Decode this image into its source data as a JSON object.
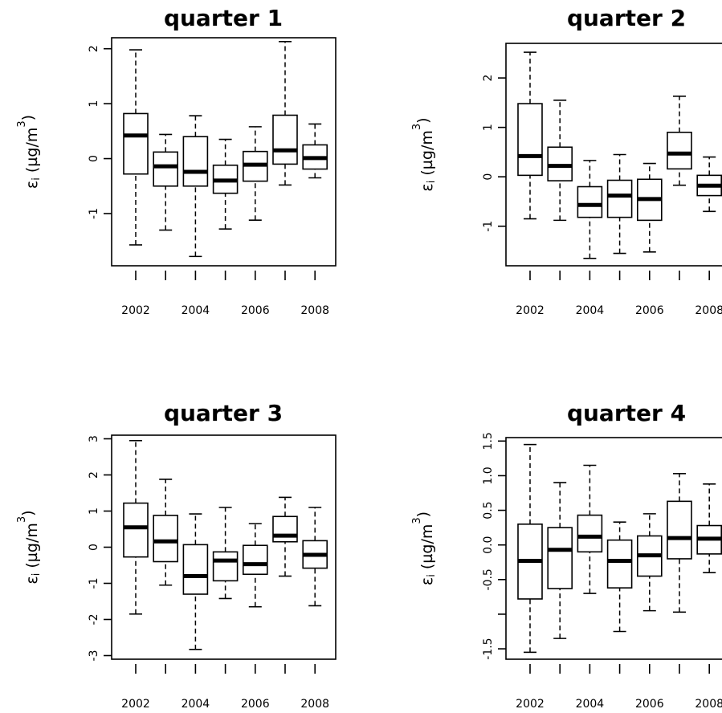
{
  "chart_data": [
    {
      "type": "boxplot",
      "title": "quarter 1",
      "ylabel": {
        "symbol": "ε",
        "sub": "i",
        "unit_pre": " (µg/m",
        "unit_sup": "3",
        "unit_post": ")"
      },
      "categories": [
        2002,
        2003,
        2004,
        2005,
        2006,
        2007,
        2008
      ],
      "x_tick_labels": [
        "2002",
        "2004",
        "2006",
        "2008"
      ],
      "y_ticks": [
        -1,
        0,
        1,
        2
      ],
      "y_tick_labels": [
        "-1",
        "0",
        "1",
        "2"
      ],
      "ylim": [
        -1.95,
        2.2
      ],
      "boxes": [
        {
          "year": 2002,
          "min": -1.57,
          "q1": -0.28,
          "median": 0.42,
          "q3": 0.82,
          "max": 1.98
        },
        {
          "year": 2003,
          "min": -1.3,
          "q1": -0.5,
          "median": -0.14,
          "q3": 0.12,
          "max": 0.44
        },
        {
          "year": 2004,
          "min": -1.78,
          "q1": -0.5,
          "median": -0.24,
          "q3": 0.4,
          "max": 0.78
        },
        {
          "year": 2005,
          "min": -1.28,
          "q1": -0.63,
          "median": -0.4,
          "q3": -0.12,
          "max": 0.35
        },
        {
          "year": 2006,
          "min": -1.12,
          "q1": -0.41,
          "median": -0.11,
          "q3": 0.13,
          "max": 0.58
        },
        {
          "year": 2007,
          "min": -0.48,
          "q1": -0.1,
          "median": 0.15,
          "q3": 0.79,
          "max": 2.13
        },
        {
          "year": 2008,
          "min": -0.35,
          "q1": -0.19,
          "median": 0.01,
          "q3": 0.25,
          "max": 0.63
        }
      ]
    },
    {
      "type": "boxplot",
      "title": "quarter 2",
      "ylabel": {
        "symbol": "ε",
        "sub": "i",
        "unit_pre": " (µg/m",
        "unit_sup": "3",
        "unit_post": ")"
      },
      "categories": [
        2002,
        2003,
        2004,
        2005,
        2006,
        2007,
        2008
      ],
      "x_tick_labels": [
        "2002",
        "2004",
        "2006",
        "2008"
      ],
      "y_ticks": [
        -1,
        0,
        1,
        2
      ],
      "y_tick_labels": [
        "-1",
        "0",
        "1",
        "2"
      ],
      "ylim": [
        -1.8,
        2.7
      ],
      "boxes": [
        {
          "year": 2002,
          "min": -0.85,
          "q1": 0.03,
          "median": 0.42,
          "q3": 1.48,
          "max": 2.52
        },
        {
          "year": 2003,
          "min": -0.88,
          "q1": -0.08,
          "median": 0.22,
          "q3": 0.6,
          "max": 1.55
        },
        {
          "year": 2004,
          "min": -1.65,
          "q1": -0.82,
          "median": -0.57,
          "q3": -0.2,
          "max": 0.33
        },
        {
          "year": 2005,
          "min": -1.55,
          "q1": -0.82,
          "median": -0.38,
          "q3": -0.07,
          "max": 0.45
        },
        {
          "year": 2006,
          "min": -1.52,
          "q1": -0.88,
          "median": -0.45,
          "q3": -0.05,
          "max": 0.27
        },
        {
          "year": 2007,
          "min": -0.17,
          "q1": 0.16,
          "median": 0.47,
          "q3": 0.9,
          "max": 1.63
        },
        {
          "year": 2008,
          "min": -0.7,
          "q1": -0.38,
          "median": -0.18,
          "q3": 0.03,
          "max": 0.4
        }
      ]
    },
    {
      "type": "boxplot",
      "title": "quarter 3",
      "ylabel": {
        "symbol": "ε",
        "sub": "i",
        "unit_pre": " (µg/m",
        "unit_sup": "3",
        "unit_post": ")"
      },
      "categories": [
        2002,
        2003,
        2004,
        2005,
        2006,
        2007,
        2008
      ],
      "x_tick_labels": [
        "2002",
        "2004",
        "2006",
        "2008"
      ],
      "y_ticks": [
        -3,
        -2,
        -1,
        0,
        1,
        2,
        3
      ],
      "y_tick_labels": [
        "-3",
        "-2",
        "-1",
        "0",
        "1",
        "2",
        "3"
      ],
      "ylim": [
        -3.1,
        3.1
      ],
      "boxes": [
        {
          "year": 2002,
          "min": -1.85,
          "q1": -0.27,
          "median": 0.55,
          "q3": 1.22,
          "max": 2.95
        },
        {
          "year": 2003,
          "min": -1.05,
          "q1": -0.4,
          "median": 0.16,
          "q3": 0.88,
          "max": 1.88
        },
        {
          "year": 2004,
          "min": -2.83,
          "q1": -1.3,
          "median": -0.8,
          "q3": 0.07,
          "max": 0.92
        },
        {
          "year": 2005,
          "min": -1.42,
          "q1": -0.93,
          "median": -0.37,
          "q3": -0.13,
          "max": 1.1
        },
        {
          "year": 2006,
          "min": -1.65,
          "q1": -0.75,
          "median": -0.47,
          "q3": 0.05,
          "max": 0.65
        },
        {
          "year": 2007,
          "min": -0.8,
          "q1": 0.15,
          "median": 0.32,
          "q3": 0.85,
          "max": 1.38
        },
        {
          "year": 2008,
          "min": -1.62,
          "q1": -0.58,
          "median": -0.21,
          "q3": 0.18,
          "max": 1.1
        }
      ]
    },
    {
      "type": "boxplot",
      "title": "quarter 4",
      "ylabel": {
        "symbol": "ε",
        "sub": "i",
        "unit_pre": " (µg/m",
        "unit_sup": "3",
        "unit_post": ")"
      },
      "categories": [
        2002,
        2003,
        2004,
        2005,
        2006,
        2007,
        2008
      ],
      "x_tick_labels": [
        "2002",
        "2004",
        "2006",
        "2008"
      ],
      "y_ticks": [
        -1.5,
        -1.0,
        -0.5,
        0.0,
        0.5,
        1.0,
        1.5
      ],
      "y_tick_labels": [
        "-1.5",
        "",
        "-0.5",
        "0.0",
        "0.5",
        "1.0",
        "1.5"
      ],
      "ylim": [
        -1.65,
        1.55
      ],
      "boxes": [
        {
          "year": 2002,
          "min": -1.55,
          "q1": -0.78,
          "median": -0.23,
          "q3": 0.3,
          "max": 1.45
        },
        {
          "year": 2003,
          "min": -1.35,
          "q1": -0.63,
          "median": -0.07,
          "q3": 0.25,
          "max": 0.9
        },
        {
          "year": 2004,
          "min": -0.7,
          "q1": -0.1,
          "median": 0.12,
          "q3": 0.43,
          "max": 1.15
        },
        {
          "year": 2005,
          "min": -1.25,
          "q1": -0.62,
          "median": -0.23,
          "q3": 0.07,
          "max": 0.33
        },
        {
          "year": 2006,
          "min": -0.95,
          "q1": -0.45,
          "median": -0.15,
          "q3": 0.13,
          "max": 0.45
        },
        {
          "year": 2007,
          "min": -0.97,
          "q1": -0.2,
          "median": 0.1,
          "q3": 0.63,
          "max": 1.03
        },
        {
          "year": 2008,
          "min": -0.4,
          "q1": -0.13,
          "median": 0.09,
          "q3": 0.28,
          "max": 0.88
        }
      ]
    }
  ]
}
